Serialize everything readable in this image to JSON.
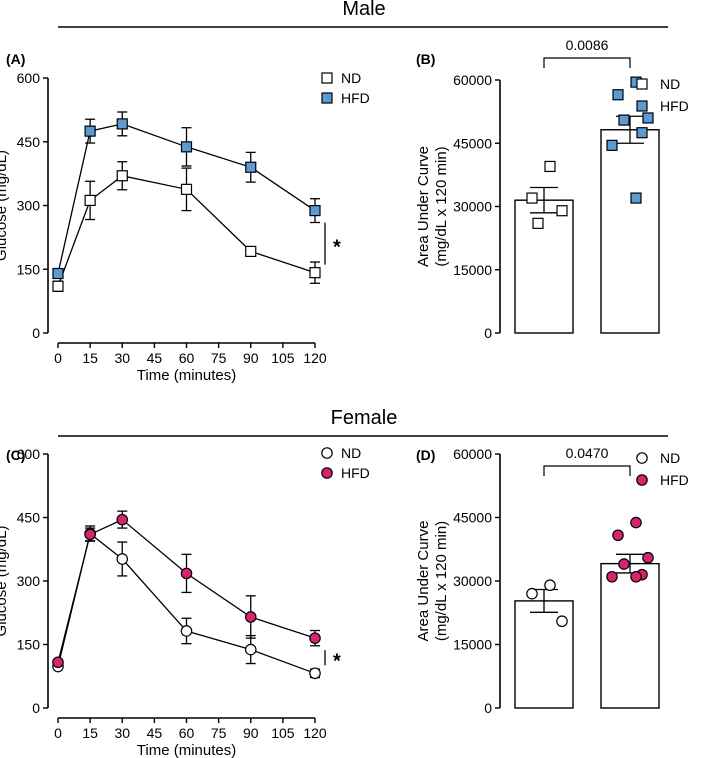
{
  "colors": {
    "male_hfd": "#5b9bd5",
    "female_hfd": "#d6246e",
    "nd": "#ffffff"
  },
  "chart_data": [
    {
      "id": "A",
      "panel_label": "(A)",
      "section": "Male",
      "type": "line",
      "marker": "square",
      "xlabel": "Time (minutes)",
      "ylabel": "Glucose (mg/dL)",
      "xlim": [
        0,
        120
      ],
      "ylim": [
        0,
        600
      ],
      "xticks": [
        0,
        15,
        30,
        45,
        60,
        75,
        90,
        105,
        120
      ],
      "yticks": [
        0,
        150,
        300,
        450,
        600
      ],
      "x": [
        0,
        15,
        30,
        60,
        90,
        120
      ],
      "significance": "*",
      "series": [
        {
          "name": "ND",
          "color_key": "nd",
          "values": [
            110,
            312,
            370,
            338,
            192,
            142
          ],
          "errors": [
            12,
            45,
            33,
            50,
            10,
            25
          ]
        },
        {
          "name": "HFD",
          "color_key": "male_hfd",
          "values": [
            140,
            475,
            492,
            438,
            390,
            288
          ],
          "errors": [
            10,
            28,
            28,
            45,
            35,
            28
          ]
        }
      ]
    },
    {
      "id": "B",
      "panel_label": "(B)",
      "type": "bar",
      "marker": "square",
      "ylabel_lines": [
        "Area Under Curve",
        "(mg/dL x 120 min)"
      ],
      "ylim": [
        0,
        60000
      ],
      "yticks": [
        0,
        15000,
        30000,
        45000,
        60000
      ],
      "p_value": "0.0086",
      "groups": [
        {
          "name": "ND",
          "color_key": "nd",
          "mean": 31500,
          "sem": 3000,
          "points": [
            39500,
            32000,
            29000,
            26000
          ]
        },
        {
          "name": "HFD",
          "color_key": "male_hfd",
          "mean": 48200,
          "sem": 3200,
          "points": [
            59500,
            56500,
            51000,
            50500,
            47500,
            44500,
            32000
          ]
        }
      ]
    },
    {
      "id": "C",
      "panel_label": "(C)",
      "section": "Female",
      "type": "line",
      "marker": "circle",
      "xlabel": "Time (minutes)",
      "ylabel": "Glucose (mg/dL)",
      "xlim": [
        0,
        120
      ],
      "ylim": [
        0,
        600
      ],
      "xticks": [
        0,
        15,
        30,
        45,
        60,
        75,
        90,
        105,
        120
      ],
      "yticks": [
        0,
        150,
        300,
        450,
        600
      ],
      "x": [
        0,
        15,
        30,
        60,
        90,
        120
      ],
      "significance": "*",
      "series": [
        {
          "name": "ND",
          "color_key": "nd",
          "values": [
            98,
            412,
            352,
            182,
            138,
            82
          ],
          "errors": [
            5,
            18,
            40,
            30,
            33,
            10
          ]
        },
        {
          "name": "HFD",
          "color_key": "female_hfd",
          "values": [
            108,
            410,
            445,
            318,
            215,
            165
          ],
          "errors": [
            5,
            15,
            20,
            45,
            50,
            18
          ]
        }
      ]
    },
    {
      "id": "D",
      "panel_label": "(D)",
      "type": "bar",
      "marker": "circle",
      "ylabel_lines": [
        "Area Under Curve",
        "(mg/dL x 120 min)"
      ],
      "ylim": [
        0,
        60000
      ],
      "yticks": [
        0,
        15000,
        30000,
        45000,
        60000
      ],
      "p_value": "0.0470",
      "groups": [
        {
          "name": "ND",
          "color_key": "nd",
          "mean": 25300,
          "sem": 2700,
          "points": [
            29000,
            27000,
            20500
          ]
        },
        {
          "name": "HFD",
          "color_key": "female_hfd",
          "mean": 34100,
          "sem": 2200,
          "points": [
            43800,
            40800,
            35500,
            34000,
            31500,
            31000,
            31000
          ]
        }
      ]
    }
  ]
}
